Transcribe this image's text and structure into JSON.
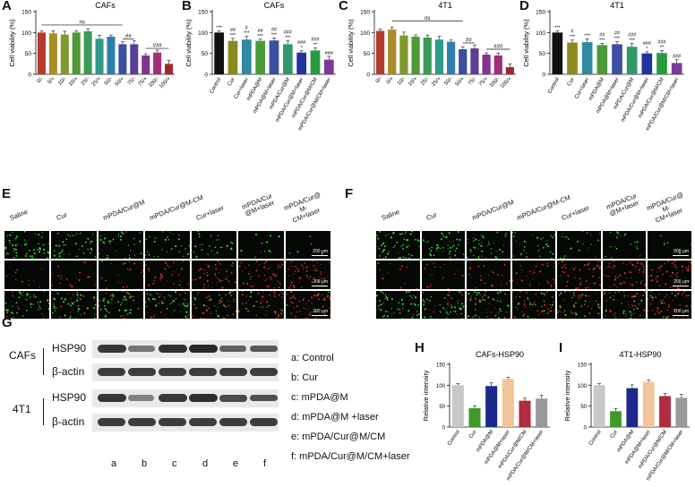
{
  "panels": {
    "A": {
      "label": "A",
      "title": "CAFs"
    },
    "B": {
      "label": "B",
      "title": "CAFs"
    },
    "C": {
      "label": "C",
      "title": "4T1"
    },
    "D": {
      "label": "D",
      "title": "4T1"
    },
    "E": {
      "label": "E",
      "scale": "200 μm",
      "columns": [
        "Saline",
        "Cur",
        "mPDA/Cur@M",
        "mPDA/Cur@M-CM",
        "Cur+laser",
        "mPDA/Cur @M+laser",
        "mPDA/Cur@ M-CM+laser"
      ]
    },
    "F": {
      "label": "F",
      "scale": "200 μm",
      "columns": [
        "Saline",
        "Cur",
        "mPDA/Cur@M",
        "mPDA/Cur@M-CM",
        "Cur+laser",
        "mPDA/Cur @M+laser",
        "mPDA/Cur@ M-CM+laser"
      ]
    },
    "G": {
      "label": "G",
      "groups": [
        {
          "name": "CAFs",
          "rows": [
            "HSP90",
            "β-actin"
          ]
        },
        {
          "name": "4T1",
          "rows": [
            "HSP90",
            "β-actin"
          ]
        }
      ],
      "lanes": [
        "a",
        "b",
        "c",
        "d",
        "e",
        "f"
      ],
      "legend": [
        "a: Control",
        "b: Cur",
        "c: mPDA@M",
        "d: mPDA@M +laser",
        "e: mPDA/Cur@M/CM",
        "f: mPDA/Cur@M/CM+laser"
      ]
    },
    "H": {
      "label": "H",
      "title": "CAFs-HSP90"
    },
    "I": {
      "label": "I",
      "title": "4T1-HSP90"
    }
  },
  "chart_data": [
    {
      "id": "A",
      "type": "bar",
      "title": "CAFs",
      "ylabel": "Cell viability (%)",
      "ylim": [
        0,
        150
      ],
      "yticks": [
        0,
        50,
        100,
        150
      ],
      "categories": [
        "0/-",
        "0/+",
        "10/-",
        "10/+",
        "25/-",
        "25/+",
        "50/-",
        "50/+",
        "75/-",
        "75/+",
        "100/-",
        "100/+"
      ],
      "values": [
        100,
        98,
        95,
        100,
        103,
        85,
        90,
        72,
        72,
        45,
        52,
        25
      ],
      "colors": [
        "#b33a2c",
        "#a78d25",
        "#7e9a2a",
        "#4f9a35",
        "#3a9a58",
        "#2e9a88",
        "#2f7eb0",
        "#3a4f9e",
        "#5a3e98",
        "#83338f",
        "#a02e7a",
        "#a0282a"
      ],
      "annotations": [
        "ns",
        "##",
        "###"
      ]
    },
    {
      "id": "B",
      "type": "bar",
      "title": "CAFs",
      "ylabel": "Cell viability (%)",
      "ylim": [
        0,
        150
      ],
      "yticks": [
        0,
        50,
        100,
        150
      ],
      "categories": [
        "Control",
        "Cur",
        "Cur+laser",
        "mPDA@M",
        "mPDA@M+laser",
        "mPDA/Cur@M",
        "mPDA/Cur@M+laser",
        "mPDA/Cur@M/CM",
        "mPDA/Cur@M/CM+laser"
      ],
      "values": [
        100,
        80,
        83,
        80,
        81,
        72,
        52,
        57,
        35
      ],
      "labels": [
        "***",
        "##\n***",
        "#\n***",
        "##\n***",
        "##\n***",
        "###\n***",
        "###\n*",
        "###\n**",
        "###"
      ],
      "colors": [
        "#111111",
        "#8a8a1c",
        "#2f8aa0",
        "#4a9a3a",
        "#3c4fa0",
        "#2e9a6a",
        "#2233a0",
        "#2a9a40",
        "#7b3a9a"
      ]
    },
    {
      "id": "C",
      "type": "bar",
      "title": "4T1",
      "ylabel": "Cell viability (%)",
      "ylim": [
        0,
        150
      ],
      "yticks": [
        0,
        50,
        100,
        150
      ],
      "categories": [
        "0/-",
        "0/+",
        "10/-",
        "10/+",
        "25/-",
        "25/+",
        "50/-",
        "50/+",
        "75/-",
        "75/+",
        "100/-",
        "100/+"
      ],
      "values": [
        104,
        107,
        93,
        90,
        88,
        83,
        78,
        60,
        62,
        47,
        45,
        17
      ],
      "colors": [
        "#b33a2c",
        "#a78d25",
        "#7e9a2a",
        "#4f9a35",
        "#3a9a58",
        "#2e9a88",
        "#2f7eb0",
        "#3a4f9e",
        "#5a3e98",
        "#83338f",
        "#a02e7a",
        "#a0282a"
      ],
      "annotations": [
        "ns",
        "##",
        "###"
      ]
    },
    {
      "id": "D",
      "type": "bar",
      "title": "4T1",
      "ylabel": "Cell viability (%)",
      "ylim": [
        0,
        150
      ],
      "yticks": [
        0,
        50,
        100,
        150
      ],
      "categories": [
        "Control",
        "Cur",
        "Cur+laser",
        "mPDA@M",
        "mPDA@M+laser",
        "mPDA/Cur@M",
        "mPDA/Cur@M+laser",
        "mPDA/Cur@M/CM",
        "mPDA/Cur@M/CM+laser"
      ],
      "values": [
        100,
        76,
        77,
        70,
        72,
        66,
        50,
        51,
        27
      ],
      "labels": [
        "***",
        "#\n***",
        "***",
        "##\n***",
        "##\n***",
        "###\n***",
        "###\n*",
        "###\n**",
        "###"
      ],
      "colors": [
        "#111111",
        "#8a8a1c",
        "#2f8aa0",
        "#4a9a3a",
        "#3c4fa0",
        "#2e9a6a",
        "#2233a0",
        "#2a9a40",
        "#7b3a9a"
      ]
    },
    {
      "id": "H",
      "type": "bar",
      "title": "CAFs-HSP90",
      "ylabel": "Relative intensity",
      "ylim": [
        0,
        150
      ],
      "yticks": [
        0,
        50,
        100,
        150
      ],
      "categories": [
        "Control",
        "Cur",
        "mPDA@M",
        "mPDA@M+laser",
        "mPDA/Cur@M/CM",
        "mPDA/Cur@M/CM+laser"
      ],
      "values": [
        100,
        45,
        98,
        115,
        63,
        68
      ],
      "colors": [
        "#c8c8c8",
        "#3f9a2a",
        "#1b2a8a",
        "#f2c59a",
        "#b02a40",
        "#9a9a9a"
      ]
    },
    {
      "id": "I",
      "type": "bar",
      "title": "4T1-HSP90",
      "ylabel": "Relative intensity",
      "ylim": [
        0,
        150
      ],
      "yticks": [
        0,
        50,
        100,
        150
      ],
      "categories": [
        "Control",
        "Cur",
        "mPDA@M",
        "mPDA@M+laser",
        "mPDA/Cur@M/CM",
        "mPDA/Cur@M/CM+laser"
      ],
      "values": [
        100,
        38,
        93,
        108,
        74,
        70
      ],
      "colors": [
        "#c8c8c8",
        "#3f9a2a",
        "#1b2a8a",
        "#f2c59a",
        "#b02a40",
        "#9a9a9a"
      ]
    }
  ]
}
